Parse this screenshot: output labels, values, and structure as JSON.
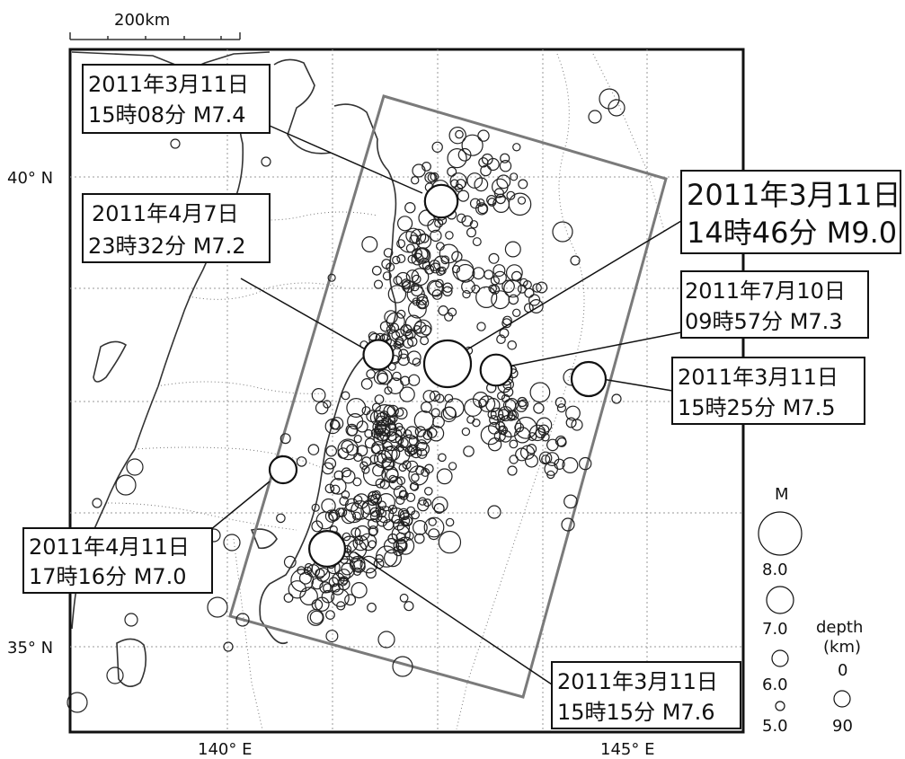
{
  "scale_bar": {
    "label": "200km"
  },
  "axes": {
    "lat_labels": [
      "40° N",
      "35° N"
    ],
    "lon_labels": [
      "140° E",
      "145° E"
    ]
  },
  "events": [
    {
      "line1": "2011年3月11日",
      "line2": "15時08分  M7.4",
      "magnitude": 7.4
    },
    {
      "line1": "2011年3月11日",
      "line2": "14時46分  M9.0",
      "magnitude": 9.0
    },
    {
      "line1": "2011年4月7日",
      "line2": "23時32分  M7.2",
      "magnitude": 7.2
    },
    {
      "line1": "2011年7月10日",
      "line2": "09時57分  M7.3",
      "magnitude": 7.3
    },
    {
      "line1": "2011年3月11日",
      "line2": "15時25分  M7.5",
      "magnitude": 7.5
    },
    {
      "line1": "2011年4月11日",
      "line2": "17時16分  M7.0",
      "magnitude": 7.0
    },
    {
      "line1": "2011年3月11日",
      "line2": "15時15分  M7.6",
      "magnitude": 7.6
    }
  ],
  "legend": {
    "magnitude_title": "M",
    "magnitude_values": [
      "8.0",
      "7.0",
      "6.0",
      "5.0"
    ],
    "depth_title_1": "depth",
    "depth_title_2": "(km)",
    "depth_values": [
      "0",
      "90"
    ]
  },
  "colors": {
    "frame": "#111111",
    "region_box": "#7a7a7a",
    "coast": "#333333",
    "grid": "#9a9a9a",
    "event_fill": "#ffffff"
  }
}
